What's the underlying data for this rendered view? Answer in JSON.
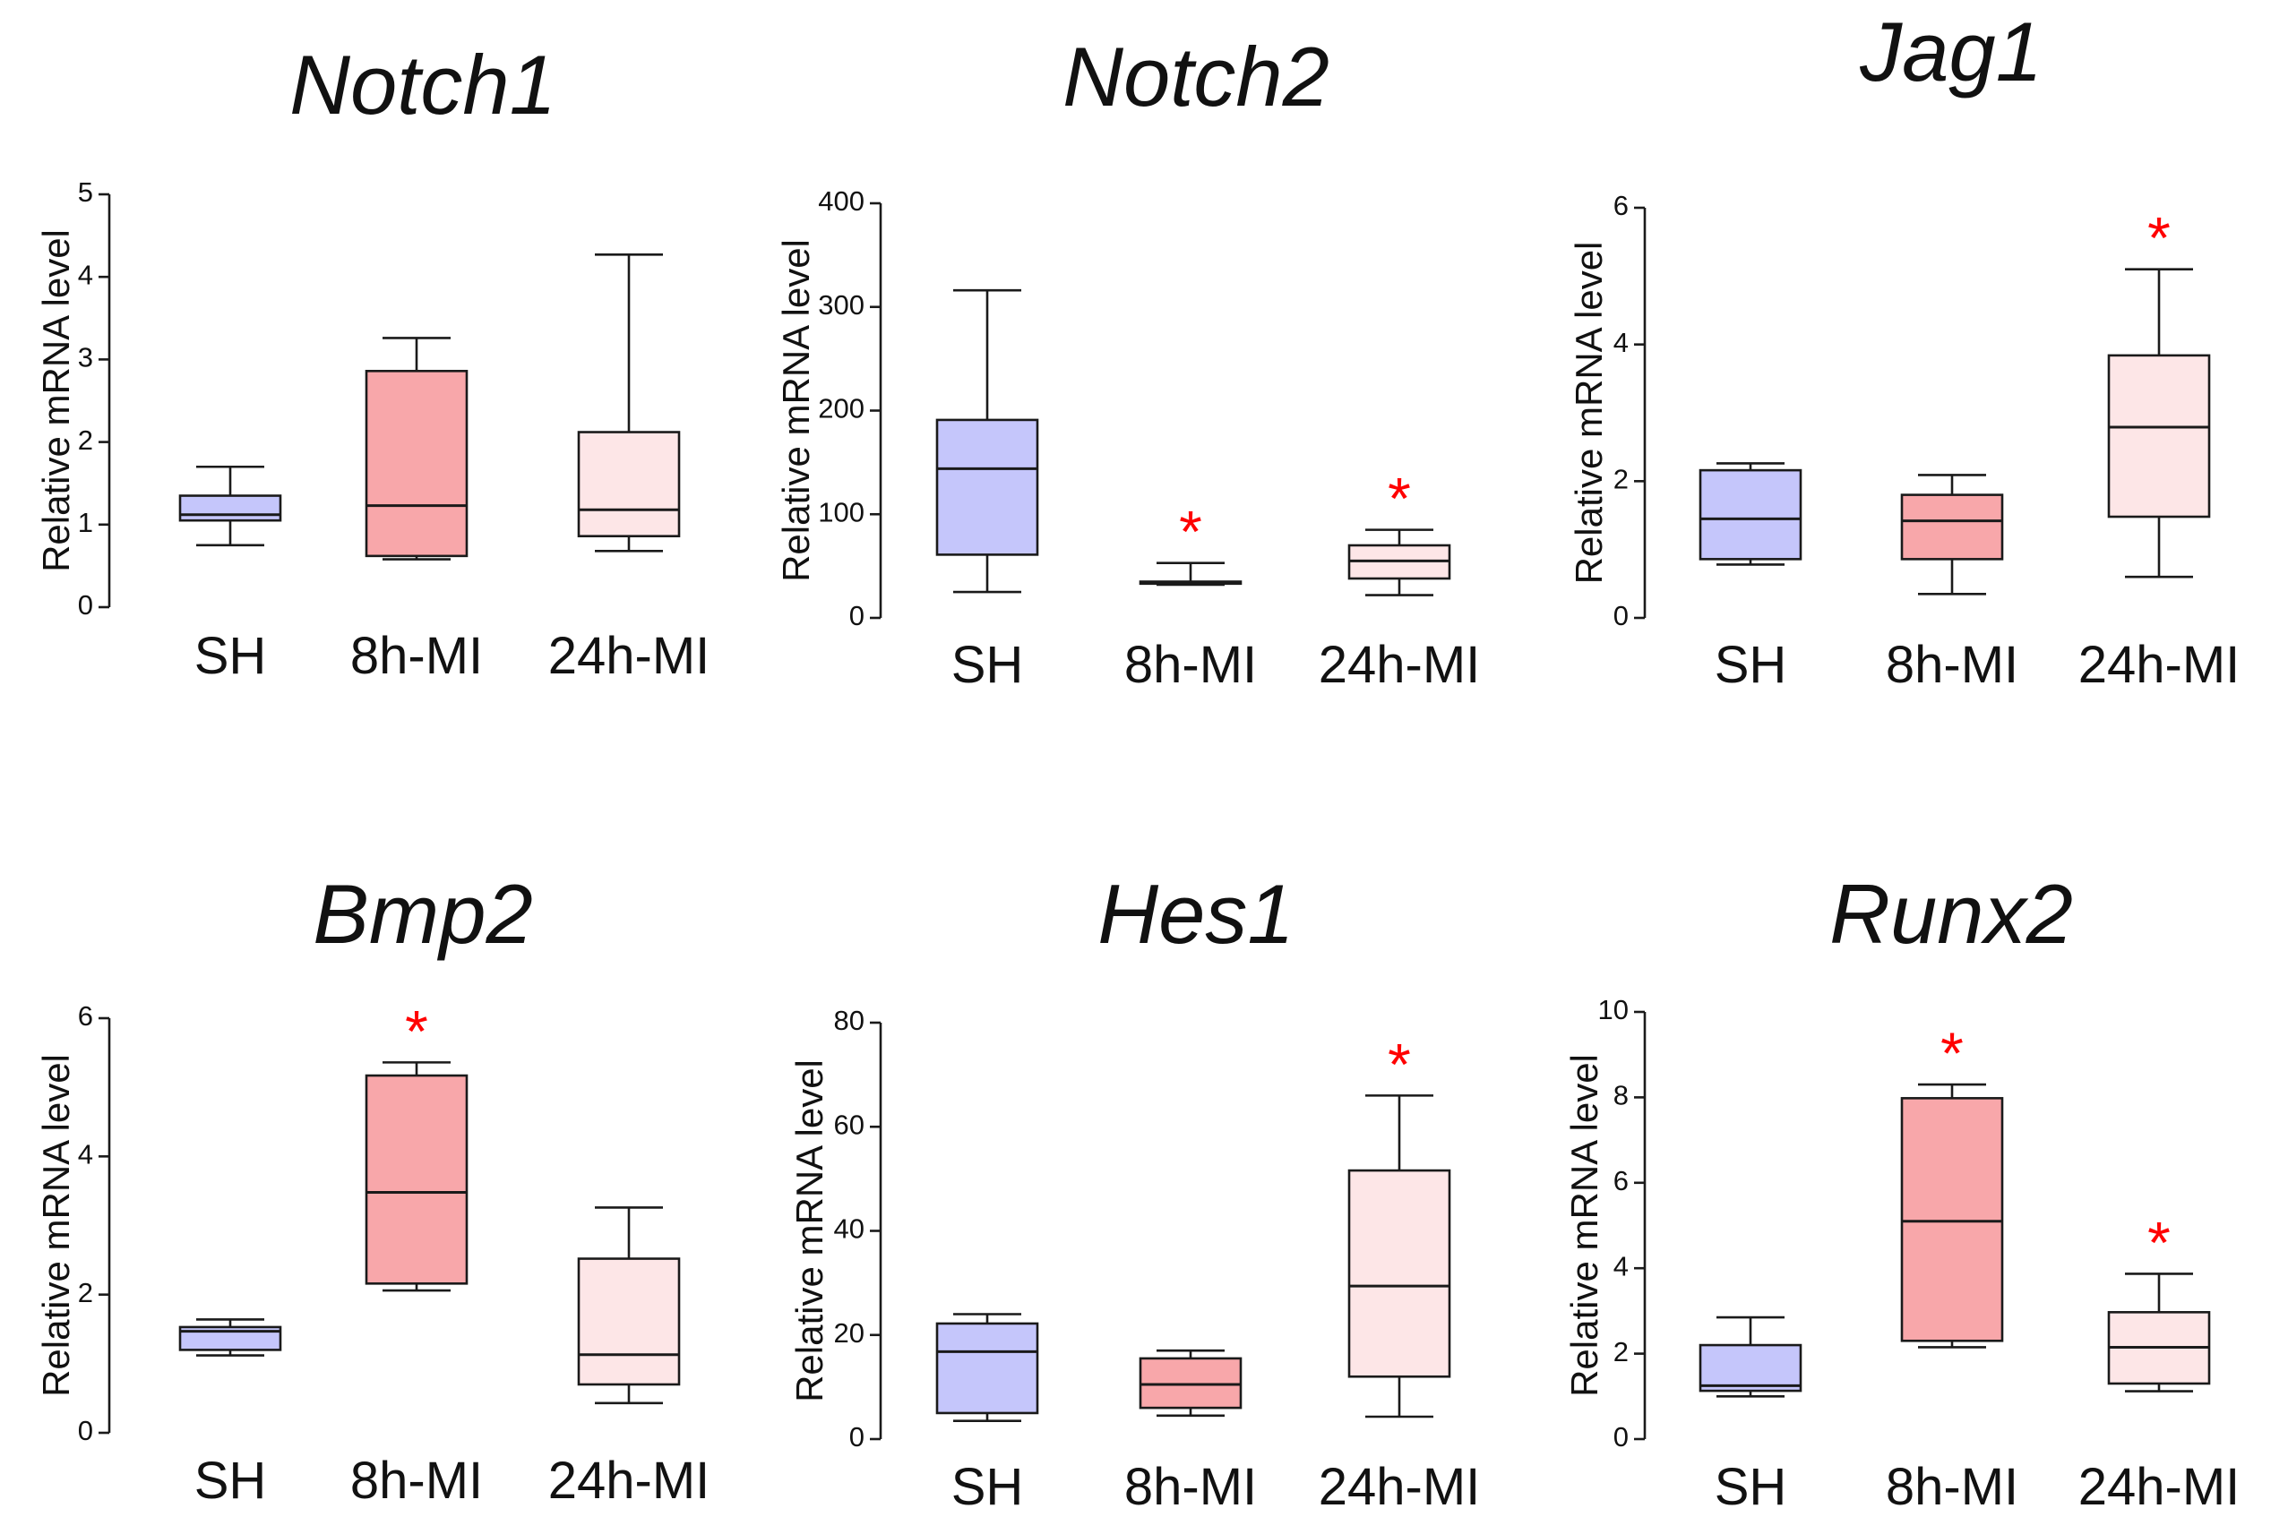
{
  "colors": {
    "SH": "#c5c6fb",
    "8h-MI": "#f8a7aa",
    "24h-MI": "#fde6e7",
    "significance": "#ff0000",
    "axis": "#1a1a1a"
  },
  "chart_data": [
    {
      "type": "box",
      "title": "Notch1",
      "ylabel": "Relative mRNA level",
      "xlabel": "",
      "ylim": [
        0,
        5
      ],
      "yticks": [
        0,
        1,
        2,
        3,
        4,
        5
      ],
      "ytick_labels": [
        "0",
        "1",
        "2",
        "3",
        "4",
        "5"
      ],
      "categories": [
        "SH",
        "8h-MI",
        "24h-MI"
      ],
      "boxes": [
        {
          "group": "SH",
          "min": 0.75,
          "q1": 1.05,
          "median": 1.12,
          "q3": 1.35,
          "max": 1.7,
          "significant": false,
          "marker": ""
        },
        {
          "group": "8h-MI",
          "min": 0.58,
          "q1": 0.62,
          "median": 1.23,
          "q3": 2.86,
          "max": 3.26,
          "significant": false,
          "marker": ""
        },
        {
          "group": "24h-MI",
          "min": 0.68,
          "q1": 0.86,
          "median": 1.18,
          "q3": 2.12,
          "max": 4.27,
          "significant": false,
          "marker": ""
        }
      ]
    },
    {
      "type": "box",
      "title": "Notch2",
      "ylabel": "Relative mRNA level",
      "xlabel": "",
      "ylim": [
        0,
        400
      ],
      "yticks": [
        0,
        100,
        200,
        300,
        400
      ],
      "ytick_labels": [
        "0",
        "100",
        "200",
        "300",
        "400"
      ],
      "categories": [
        "SH",
        "8h-MI",
        "24h-MI"
      ],
      "boxes": [
        {
          "group": "SH",
          "min": 25,
          "q1": 61,
          "median": 144,
          "q3": 191,
          "max": 316,
          "significant": false,
          "marker": ""
        },
        {
          "group": "8h-MI",
          "min": 32,
          "q1": 33,
          "median": 34,
          "q3": 35,
          "max": 53,
          "significant": true,
          "marker": "*"
        },
        {
          "group": "24h-MI",
          "min": 22,
          "q1": 38,
          "median": 55,
          "q3": 70,
          "max": 85,
          "significant": true,
          "marker": "*"
        }
      ]
    },
    {
      "type": "box",
      "title": "Jag1",
      "ylabel": "Relative mRNA level",
      "xlabel": "",
      "ylim": [
        0,
        6
      ],
      "yticks": [
        0,
        2,
        4,
        6
      ],
      "ytick_labels": [
        "0",
        "2",
        "4",
        "6"
      ],
      "categories": [
        "SH",
        "8h-MI",
        "24h-MI"
      ],
      "boxes": [
        {
          "group": "SH",
          "min": 0.78,
          "q1": 0.86,
          "median": 1.45,
          "q3": 2.16,
          "max": 2.26,
          "significant": false,
          "marker": ""
        },
        {
          "group": "8h-MI",
          "min": 0.35,
          "q1": 0.86,
          "median": 1.42,
          "q3": 1.8,
          "max": 2.09,
          "significant": false,
          "marker": ""
        },
        {
          "group": "24h-MI",
          "min": 0.6,
          "q1": 1.48,
          "median": 2.79,
          "q3": 3.84,
          "max": 5.1,
          "significant": true,
          "marker": "*"
        }
      ]
    },
    {
      "type": "box",
      "title": "Bmp2",
      "ylabel": "Relative mRNA level",
      "xlabel": "",
      "ylim": [
        0,
        6
      ],
      "yticks": [
        0,
        2,
        4,
        6
      ],
      "ytick_labels": [
        "0",
        "2",
        "4",
        "6"
      ],
      "categories": [
        "SH",
        "8h-MI",
        "24h-MI"
      ],
      "boxes": [
        {
          "group": "SH",
          "min": 1.12,
          "q1": 1.2,
          "median": 1.47,
          "q3": 1.53,
          "max": 1.64,
          "significant": false,
          "marker": ""
        },
        {
          "group": "8h-MI",
          "min": 2.06,
          "q1": 2.16,
          "median": 3.48,
          "q3": 5.17,
          "max": 5.36,
          "significant": true,
          "marker": "*"
        },
        {
          "group": "24h-MI",
          "min": 0.43,
          "q1": 0.7,
          "median": 1.13,
          "q3": 2.52,
          "max": 3.26,
          "significant": false,
          "marker": ""
        }
      ]
    },
    {
      "type": "box",
      "title": "Hes1",
      "ylabel": "Relative mRNA level",
      "xlabel": "",
      "ylim": [
        0,
        80
      ],
      "yticks": [
        0,
        20,
        40,
        60,
        80
      ],
      "ytick_labels": [
        "0",
        "20",
        "40",
        "60",
        "80"
      ],
      "categories": [
        "SH",
        "8h-MI",
        "24h-MI"
      ],
      "boxes": [
        {
          "group": "SH",
          "min": 3.5,
          "q1": 5,
          "median": 16.8,
          "q3": 22.2,
          "max": 24,
          "significant": false,
          "marker": ""
        },
        {
          "group": "8h-MI",
          "min": 4.5,
          "q1": 6,
          "median": 10.5,
          "q3": 15.5,
          "max": 17,
          "significant": false,
          "marker": ""
        },
        {
          "group": "24h-MI",
          "min": 4.3,
          "q1": 12,
          "median": 29.4,
          "q3": 51.6,
          "max": 66,
          "significant": true,
          "marker": "*"
        }
      ]
    },
    {
      "type": "box",
      "title": "Runx2",
      "ylabel": "Relative mRNA level",
      "xlabel": "",
      "ylim": [
        0,
        10
      ],
      "yticks": [
        0,
        2,
        4,
        6,
        8,
        10
      ],
      "ytick_labels": [
        "0",
        "2",
        "4",
        "6",
        "8",
        "10"
      ],
      "categories": [
        "SH",
        "8h-MI",
        "24h-MI"
      ],
      "boxes": [
        {
          "group": "SH",
          "min": 1.0,
          "q1": 1.13,
          "median": 1.25,
          "q3": 2.2,
          "max": 2.85,
          "significant": false,
          "marker": ""
        },
        {
          "group": "8h-MI",
          "min": 2.15,
          "q1": 2.3,
          "median": 5.1,
          "q3": 7.98,
          "max": 8.3,
          "significant": true,
          "marker": "*"
        },
        {
          "group": "24h-MI",
          "min": 1.12,
          "q1": 1.3,
          "median": 2.15,
          "q3": 2.97,
          "max": 3.87,
          "significant": true,
          "marker": "*"
        }
      ]
    }
  ]
}
